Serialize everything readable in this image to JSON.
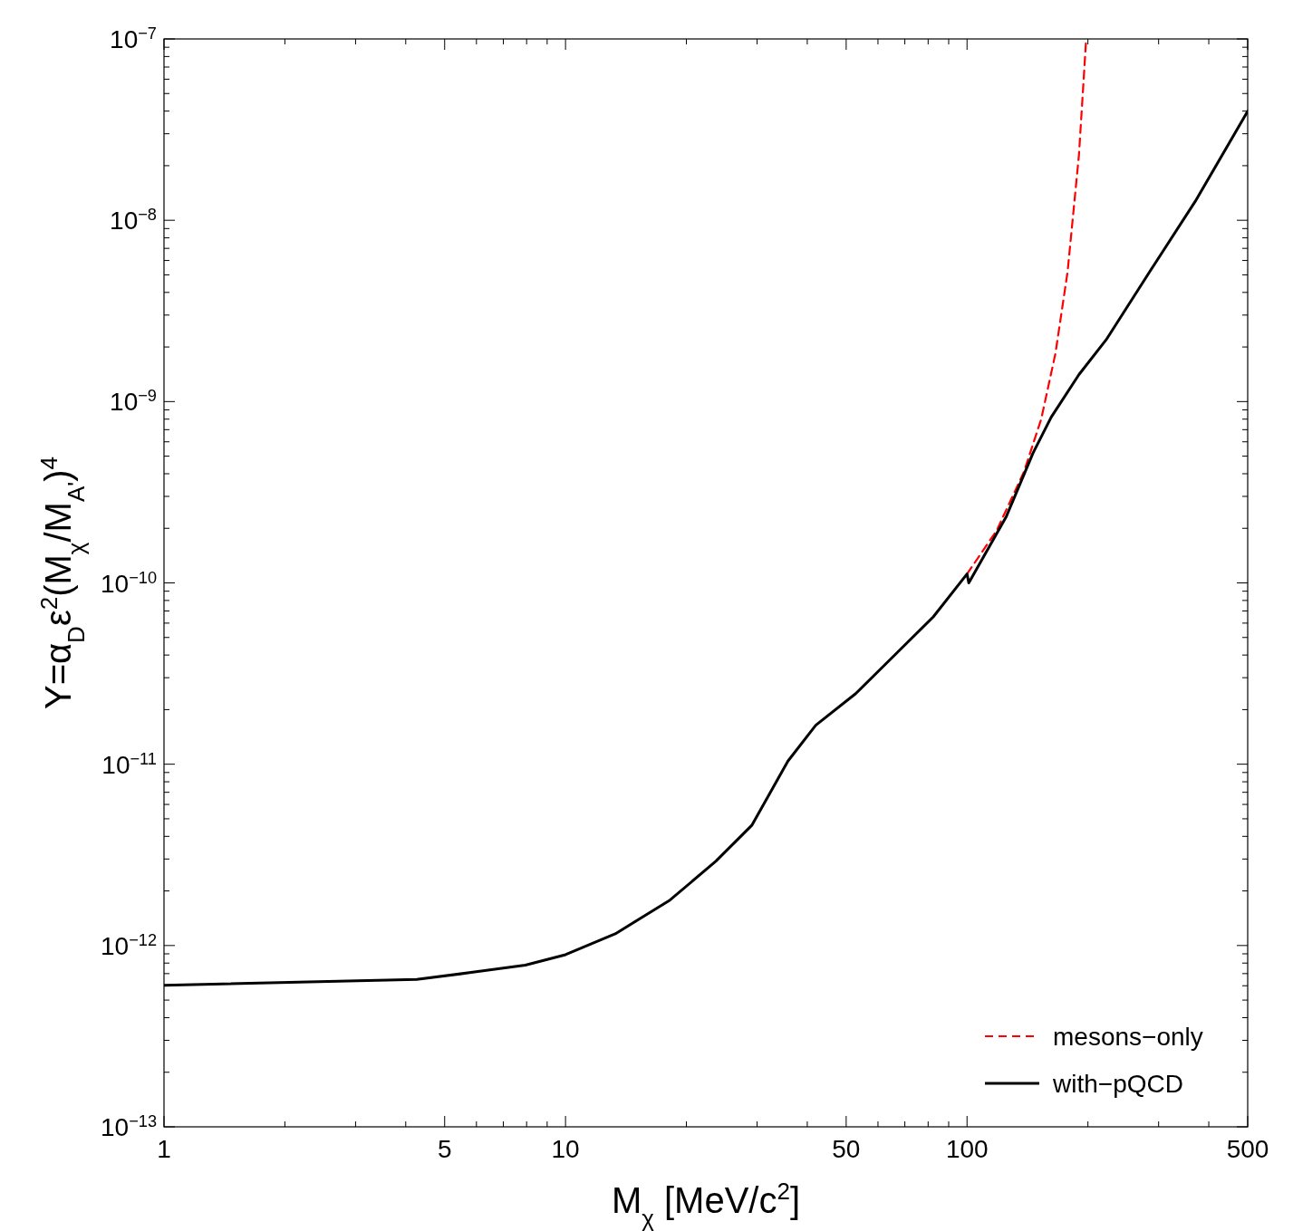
{
  "chart_data": {
    "type": "line",
    "xlabel": "M$_{χ}$ [MeV/c$^{2}$]",
    "ylabel": "Y=α$_{D}$ε$^{2}$(M$_{χ}$/M$_{A'}$)$^{4}$",
    "log": "xy",
    "grid": false,
    "legend": "bottom right",
    "marker": "none",
    "xlim": [
      1,
      500
    ],
    "ylim": [
      1e-13,
      1e-07
    ],
    "xticks": [
      1,
      {
        "value": 2,
        "label": null
      },
      {
        "value": 3,
        "label": null
      },
      {
        "value": 4,
        "label": null
      },
      5,
      {
        "value": 6,
        "label": null
      },
      {
        "value": 7,
        "label": null
      },
      {
        "value": 8,
        "label": null
      },
      {
        "value": 9,
        "label": null
      },
      10,
      {
        "value": 20,
        "label": null
      },
      {
        "value": 30,
        "label": null
      },
      {
        "value": 40,
        "label": null
      },
      50,
      {
        "value": 60,
        "label": null
      },
      {
        "value": 70,
        "label": null
      },
      {
        "value": 80,
        "label": null
      },
      {
        "value": 90,
        "label": null
      },
      100,
      {
        "value": 200,
        "label": null
      },
      {
        "value": 300,
        "label": null
      },
      {
        "value": 400,
        "label": null
      },
      500
    ],
    "yticks": [
      {
        "value": 1e-13,
        "label": "10$^{−13}$"
      },
      {
        "value": 2e-13,
        "label": null
      },
      {
        "value": 3e-13,
        "label": null
      },
      {
        "value": 4e-13,
        "label": null
      },
      {
        "value": 5e-13,
        "label": null
      },
      {
        "value": 6e-13,
        "label": null
      },
      {
        "value": 7e-13,
        "label": null
      },
      {
        "value": 8e-13,
        "label": null
      },
      {
        "value": 9e-13,
        "label": null
      },
      {
        "value": 1e-12,
        "label": "10$^{−12}$"
      },
      {
        "value": 2e-12,
        "label": null
      },
      {
        "value": 3e-12,
        "label": null
      },
      {
        "value": 4e-12,
        "label": null
      },
      {
        "value": 5e-12,
        "label": null
      },
      {
        "value": 6e-12,
        "label": null
      },
      {
        "value": 7e-12,
        "label": null
      },
      {
        "value": 8e-12,
        "label": null
      },
      {
        "value": 9e-12,
        "label": null
      },
      {
        "value": 1e-11,
        "label": "10$^{−11}$"
      },
      {
        "value": 2e-11,
        "label": null
      },
      {
        "value": 3e-11,
        "label": null
      },
      {
        "value": 4e-11,
        "label": null
      },
      {
        "value": 5e-11,
        "label": null
      },
      {
        "value": 6e-11,
        "label": null
      },
      {
        "value": 7e-11,
        "label": null
      },
      {
        "value": 8e-11,
        "label": null
      },
      {
        "value": 9e-11,
        "label": null
      },
      {
        "value": 1e-10,
        "label": "10$^{−10}$"
      },
      {
        "value": 2e-10,
        "label": null
      },
      {
        "value": 3e-10,
        "label": null
      },
      {
        "value": 4e-10,
        "label": null
      },
      {
        "value": 5e-10,
        "label": null
      },
      {
        "value": 6e-10,
        "label": null
      },
      {
        "value": 7e-10,
        "label": null
      },
      {
        "value": 8e-10,
        "label": null
      },
      {
        "value": 9e-10,
        "label": null
      },
      {
        "value": 1e-09,
        "label": "10$^{−9}$"
      },
      {
        "value": 2e-09,
        "label": null
      },
      {
        "value": 3e-09,
        "label": null
      },
      {
        "value": 4e-09,
        "label": null
      },
      {
        "value": 5e-09,
        "label": null
      },
      {
        "value": 6e-09,
        "label": null
      },
      {
        "value": 7e-09,
        "label": null
      },
      {
        "value": 8e-09,
        "label": null
      },
      {
        "value": 9e-09,
        "label": null
      },
      {
        "value": 1e-08,
        "label": "10$^{−8}$"
      },
      {
        "value": 2e-08,
        "label": null
      },
      {
        "value": 3e-08,
        "label": null
      },
      {
        "value": 4e-08,
        "label": null
      },
      {
        "value": 5e-08,
        "label": null
      },
      {
        "value": 6e-08,
        "label": null
      },
      {
        "value": 7e-08,
        "label": null
      },
      {
        "value": 8e-08,
        "label": null
      },
      {
        "value": 9e-08,
        "label": null
      },
      {
        "value": 1e-07,
        "label": "10$^{−7}$"
      }
    ],
    "series": [
      {
        "name": "mesons−only",
        "color": "#ff0000",
        "line_style": "dashed",
        "x": [
          100,
          118.6,
          138.6,
          153,
          166,
          178,
          190,
          198
        ],
        "values": [
          1.12e-10,
          1.95e-10,
          4.1e-10,
          8e-10,
          1.84e-09,
          5.2e-09,
          2.3e-08,
          1e-07
        ]
      },
      {
        "name": "with−pQCD",
        "color": "#000000",
        "line_style": "solid",
        "x": [
          1,
          4.26,
          5.82,
          7.94,
          10,
          13.3,
          18.2,
          23.7,
          29.1,
          35.8,
          42,
          52.8,
          66.8,
          82.4,
          100,
          101,
          125,
          146,
          162,
          190,
          222,
          285,
          370,
          500
        ],
        "values": [
          6.03e-13,
          6.5e-13,
          7.1e-13,
          7.8e-13,
          8.9e-13,
          1.16e-12,
          1.78e-12,
          2.92e-12,
          4.6e-12,
          1.04e-11,
          1.64e-11,
          2.45e-11,
          4.1e-11,
          6.5e-11,
          1.12e-10,
          1e-10,
          2.3e-10,
          5.2e-10,
          8.2e-10,
          1.41e-09,
          2.19e-09,
          5.2e-09,
          1.27e-08,
          4e-08
        ]
      }
    ]
  }
}
